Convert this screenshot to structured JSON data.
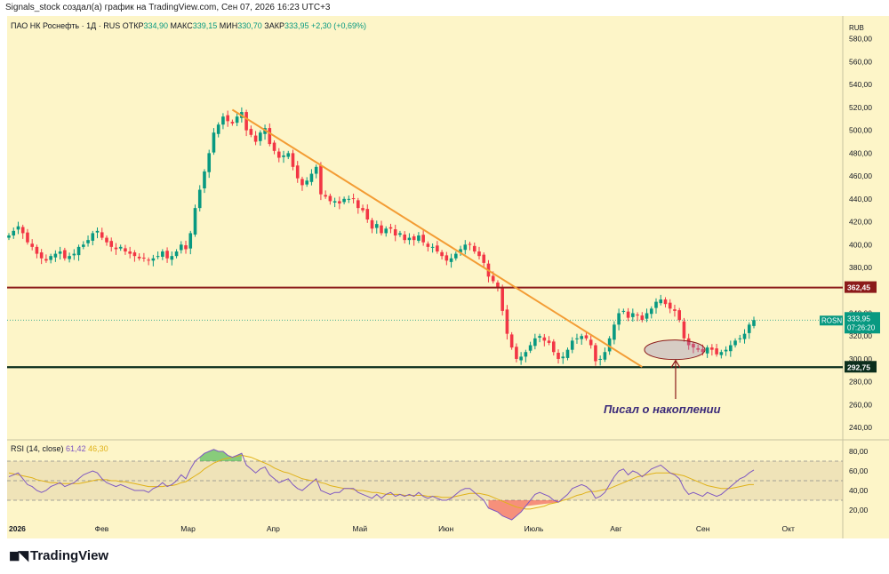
{
  "header": {
    "caption": "Signals_stock создал(а) график на TradingView.com, Сен 07, 2026 16:23 UTC+3"
  },
  "legend": {
    "symbol": "ПАО НК Роснефть · 1Д · RUS",
    "o_label": "ОТКР",
    "o": "334,90",
    "h_label": "МАКС",
    "h": "339,15",
    "l_label": "МИН",
    "l": "330,70",
    "c_label": "ЗАКР",
    "c": "333,95",
    "change": "+2,30 (+0,69%)"
  },
  "rsi_legend": {
    "name": "RSI (14, close)",
    "rsi": "61,42",
    "ma": "46,30"
  },
  "brand": {
    "name": "TradingView"
  },
  "colors": {
    "background": "#fdf5c8",
    "up": "#089981",
    "down": "#f23645",
    "trendline": "#f39c34",
    "resistance": "#8b1a1a",
    "support": "#0b2e1c",
    "rsi": "#7e57c2",
    "rsi_ma": "#e0b21a"
  },
  "chart_data": [
    {
      "type": "candlestick",
      "currency": "RUB",
      "ylim": [
        230,
        600
      ],
      "y_ticks": [
        "240,00",
        "260,00",
        "280,00",
        "300,00",
        "320,00",
        "340,00",
        "380,00",
        "400,00",
        "420,00",
        "440,00",
        "460,00",
        "480,00",
        "500,00",
        "520,00",
        "540,00",
        "560,00",
        "580,00"
      ],
      "x_ticks": [
        "2026",
        "Фев",
        "Мар",
        "Апр",
        "Май",
        "Июн",
        "Июль",
        "Авг",
        "Сен",
        "Окт"
      ],
      "price_labels": {
        "symbol": "ROSN",
        "last": "333,95",
        "countdown": "07:26:20",
        "resistance": "362,45",
        "support": "292,75"
      },
      "levels": [
        {
          "name": "resistance",
          "value": 362.45
        },
        {
          "name": "support",
          "value": 292.75
        }
      ],
      "trendline": {
        "from": [
          "Мар",
          518
        ],
        "to": [
          "Авг",
          293
        ]
      },
      "annotation": "Писал о накоплении",
      "closes": [
        408,
        412,
        416,
        410,
        402,
        398,
        392,
        388,
        386,
        390,
        392,
        394,
        388,
        390,
        392,
        398,
        400,
        404,
        410,
        412,
        406,
        402,
        398,
        396,
        398,
        394,
        392,
        390,
        388,
        388,
        386,
        388,
        390,
        394,
        388,
        390,
        394,
        400,
        396,
        410,
        432,
        448,
        464,
        480,
        498,
        505,
        512,
        508,
        506,
        512,
        516,
        500,
        496,
        490,
        498,
        502,
        488,
        482,
        476,
        478,
        480,
        468,
        458,
        452,
        456,
        462,
        468,
        444,
        442,
        438,
        438,
        436,
        440,
        440,
        440,
        432,
        430,
        422,
        414,
        418,
        410,
        414,
        414,
        408,
        410,
        404,
        406,
        404,
        408,
        402,
        398,
        398,
        394,
        390,
        386,
        388,
        392,
        396,
        400,
        400,
        394,
        390,
        384,
        372,
        368,
        362,
        342,
        322,
        310,
        300,
        302,
        306,
        312,
        318,
        320,
        316,
        314,
        306,
        300,
        302,
        308,
        316,
        318,
        320,
        318,
        312,
        298,
        300,
        306,
        318,
        330,
        340,
        342,
        336,
        340,
        338,
        334,
        340,
        344,
        350,
        352,
        348,
        344,
        342,
        334,
        318,
        312,
        310,
        308,
        306,
        310,
        308,
        304,
        306,
        308,
        312,
        316,
        318,
        322,
        330,
        334
      ]
    },
    {
      "type": "line",
      "title": "RSI (14, close)",
      "ylim": [
        10,
        90
      ],
      "y_ticks": [
        "20,00",
        "40,00",
        "60,00",
        "80,00"
      ],
      "bands": [
        30,
        50,
        70
      ],
      "series": [
        {
          "name": "RSI",
          "values": [
            54,
            56,
            58,
            52,
            46,
            44,
            40,
            38,
            40,
            44,
            46,
            48,
            44,
            46,
            48,
            52,
            56,
            58,
            60,
            58,
            52,
            48,
            46,
            44,
            46,
            44,
            42,
            40,
            40,
            40,
            38,
            42,
            44,
            48,
            44,
            46,
            50,
            56,
            52,
            62,
            70,
            74,
            78,
            80,
            82,
            80,
            80,
            76,
            74,
            76,
            78,
            66,
            62,
            58,
            62,
            64,
            56,
            52,
            48,
            50,
            52,
            46,
            42,
            40,
            44,
            48,
            52,
            40,
            38,
            36,
            38,
            38,
            42,
            42,
            42,
            38,
            36,
            34,
            32,
            36,
            32,
            36,
            38,
            34,
            36,
            34,
            36,
            34,
            38,
            34,
            32,
            34,
            32,
            30,
            30,
            32,
            36,
            40,
            42,
            42,
            38,
            34,
            30,
            22,
            20,
            18,
            14,
            12,
            10,
            14,
            18,
            24,
            30,
            36,
            38,
            36,
            34,
            30,
            28,
            32,
            36,
            42,
            44,
            46,
            44,
            40,
            32,
            34,
            38,
            46,
            54,
            60,
            62,
            56,
            60,
            58,
            54,
            58,
            62,
            64,
            66,
            62,
            58,
            56,
            52,
            42,
            36,
            38,
            36,
            34,
            38,
            36,
            34,
            36,
            40,
            44,
            48,
            52,
            54,
            58,
            61
          ]
        },
        {
          "name": "MA",
          "values": [
            58,
            57,
            56,
            55,
            54,
            53,
            51,
            50,
            49,
            48,
            48,
            47,
            47,
            47,
            47,
            47,
            48,
            49,
            50,
            51,
            51,
            51,
            50,
            50,
            49,
            49,
            48,
            47,
            46,
            45,
            44,
            44,
            44,
            44,
            45,
            45,
            46,
            48,
            49,
            52,
            55,
            58,
            62,
            65,
            68,
            70,
            72,
            73,
            74,
            75,
            76,
            75,
            74,
            72,
            70,
            68,
            66,
            63,
            61,
            59,
            58,
            56,
            54,
            52,
            51,
            50,
            50,
            48,
            47,
            45,
            44,
            43,
            42,
            42,
            41,
            40,
            40,
            39,
            38,
            38,
            37,
            36,
            36,
            36,
            36,
            35,
            35,
            35,
            35,
            35,
            34,
            34,
            34,
            33,
            33,
            33,
            34,
            35,
            36,
            37,
            37,
            37,
            36,
            35,
            33,
            31,
            29,
            27,
            25,
            23,
            22,
            21,
            21,
            22,
            23,
            24,
            26,
            27,
            28,
            30,
            31,
            33,
            35,
            36,
            38,
            39,
            39,
            40,
            41,
            42,
            44,
            46,
            48,
            50,
            52,
            54,
            55,
            56,
            57,
            58,
            58,
            58,
            58,
            57,
            56,
            55,
            53,
            51,
            49,
            47,
            45,
            44,
            43,
            42,
            42,
            42,
            43,
            44,
            45,
            46,
            46
          ]
        }
      ]
    }
  ]
}
